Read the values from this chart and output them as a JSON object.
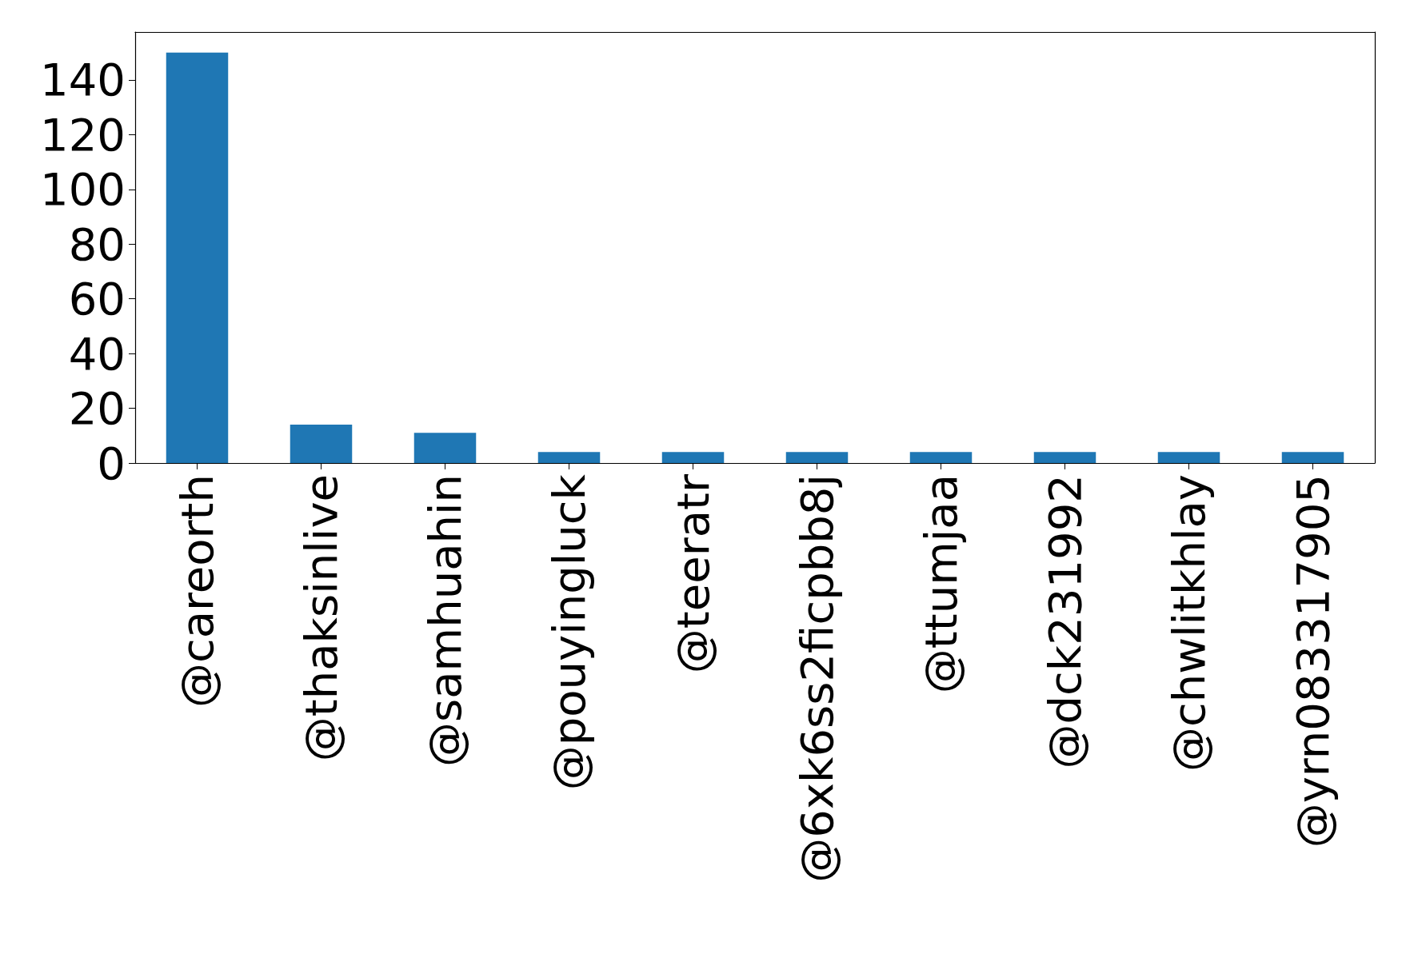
{
  "chart_data": {
    "type": "bar",
    "categories": [
      "@careorth",
      "@thaksinlive",
      "@samhuahin",
      "@pouyingluck",
      "@teeratr",
      "@6xk6ss2ficpbb8j",
      "@ttumjaa",
      "@dck231992",
      "@chwlitkhlay",
      "@yrn083317905"
    ],
    "values": [
      150,
      14,
      11,
      4,
      4,
      4,
      4,
      4,
      4,
      4
    ],
    "color": "#1f77b4",
    "ylim": [
      0,
      157.5
    ],
    "yticks": [
      0,
      20,
      40,
      60,
      80,
      100,
      120,
      140
    ],
    "grid": false
  }
}
